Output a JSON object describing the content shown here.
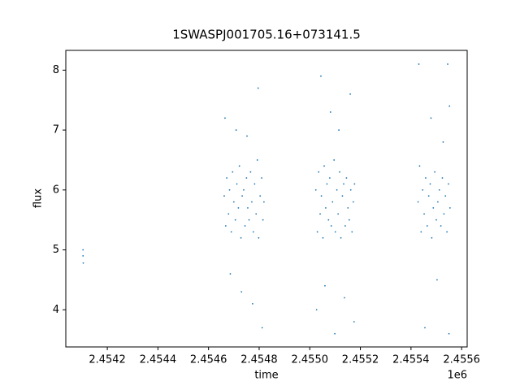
{
  "chart_data": {
    "type": "scatter",
    "title": "1SWASPJ001705.16+073141.5",
    "xlabel": "time",
    "ylabel": "flux",
    "x_offset_label": "1e6",
    "color": "#1f77b4",
    "xlim": [
      2454036,
      2455622
    ],
    "ylim": [
      3.38,
      8.33
    ],
    "xticks": [
      {
        "value": 2454200,
        "label": "2.4542"
      },
      {
        "value": 2454400,
        "label": "2.4544"
      },
      {
        "value": 2454600,
        "label": "2.4546"
      },
      {
        "value": 2454800,
        "label": "2.4548"
      },
      {
        "value": 2455000,
        "label": "2.4550"
      },
      {
        "value": 2455200,
        "label": "2.4552"
      },
      {
        "value": 2455400,
        "label": "2.4554"
      },
      {
        "value": 2455600,
        "label": "2.4556"
      }
    ],
    "yticks": [
      4,
      5,
      6,
      7,
      8
    ],
    "x": [
      2454104,
      2454104,
      2454105,
      2454662,
      2454668,
      2454672,
      2454679,
      2454683,
      2454690,
      2454695,
      2454700,
      2454706,
      2454712,
      2454718,
      2454722,
      2454728,
      2454733,
      2454739,
      2454744,
      2454750,
      2454755,
      2454760,
      2454766,
      2454771,
      2454777,
      2454782,
      2454788,
      2454793,
      2454798,
      2454804,
      2454810,
      2454815,
      2454819,
      2454665,
      2454686,
      2454709,
      2454730,
      2454752,
      2454774,
      2454796,
      2454812,
      2455024,
      2455030,
      2455035,
      2455041,
      2455046,
      2455052,
      2455057,
      2455063,
      2455068,
      2455074,
      2455079,
      2455085,
      2455090,
      2455096,
      2455101,
      2455107,
      2455112,
      2455118,
      2455123,
      2455129,
      2455134,
      2455140,
      2455145,
      2455151,
      2455156,
      2455162,
      2455167,
      2455172,
      2455177,
      2455027,
      2455044,
      2455060,
      2455082,
      2455099,
      2455115,
      2455137,
      2455160,
      2455175,
      2455428,
      2455434,
      2455440,
      2455446,
      2455452,
      2455458,
      2455464,
      2455470,
      2455476,
      2455482,
      2455488,
      2455494,
      2455500,
      2455506,
      2455512,
      2455518,
      2455524,
      2455530,
      2455536,
      2455542,
      2455548,
      2455554,
      2455431,
      2455455,
      2455479,
      2455503,
      2455527,
      2455545,
      2455550,
      2455552
    ],
    "values": [
      5.0,
      4.9,
      4.78,
      5.9,
      5.4,
      6.2,
      5.6,
      6.0,
      5.3,
      6.3,
      5.8,
      5.5,
      6.1,
      5.7,
      6.4,
      5.2,
      5.9,
      6.0,
      5.4,
      6.2,
      5.7,
      5.5,
      6.3,
      5.8,
      5.3,
      6.1,
      5.6,
      6.5,
      5.2,
      5.9,
      6.2,
      5.5,
      5.8,
      7.2,
      4.6,
      7.0,
      4.3,
      6.9,
      4.1,
      7.7,
      3.7,
      6.0,
      5.3,
      6.3,
      5.6,
      5.9,
      5.2,
      6.4,
      5.7,
      6.1,
      5.5,
      6.2,
      5.4,
      5.8,
      6.5,
      5.3,
      6.0,
      5.6,
      6.3,
      5.2,
      5.9,
      6.1,
      5.4,
      6.2,
      5.7,
      5.5,
      6.0,
      5.3,
      5.8,
      6.1,
      4.0,
      7.9,
      4.4,
      7.3,
      3.6,
      7.0,
      4.2,
      7.6,
      3.8,
      5.8,
      6.4,
      5.3,
      6.0,
      5.6,
      6.2,
      5.4,
      5.9,
      6.1,
      5.2,
      5.7,
      6.3,
      5.5,
      5.8,
      6.0,
      5.4,
      6.2,
      5.6,
      5.9,
      5.3,
      6.1,
      5.7,
      8.1,
      3.7,
      7.2,
      4.5,
      6.8,
      8.1,
      3.6,
      7.4
    ]
  }
}
